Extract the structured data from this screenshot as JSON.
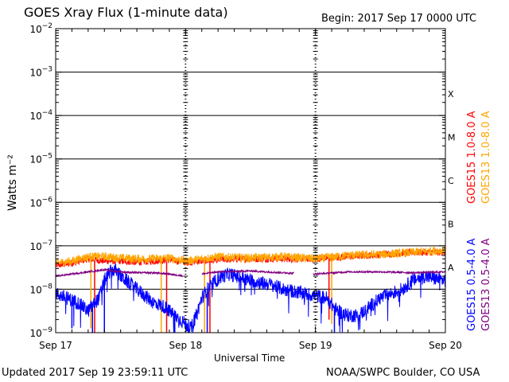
{
  "header": {
    "title": "GOES Xray Flux (1-minute data)",
    "begin": "Begin:  2017 Sep 17 0000 UTC"
  },
  "footer": {
    "updated": "Updated 2017 Sep 19 23:59:11 UTC",
    "credit": "NOAA/SWPC Boulder, CO USA"
  },
  "colors": {
    "goes15_long": "#ff0000",
    "goes13_long": "#ffa500",
    "goes15_short": "#0000ff",
    "goes13_short": "#800080",
    "frame": "#000000"
  },
  "chart_data": {
    "type": "line",
    "title": "GOES Xray Flux (1-minute data)",
    "xlabel": "Universal Time",
    "ylabel": "Watts m⁻²",
    "yscale": "log",
    "ylim": [
      1e-09,
      0.01
    ],
    "xlim": [
      0,
      72
    ],
    "x_unit": "hours since 2017 Sep 17 0000 UTC",
    "x_ticks": [
      {
        "x": 0,
        "label": "Sep 17"
      },
      {
        "x": 24,
        "label": "Sep 18"
      },
      {
        "x": 48,
        "label": "Sep 19"
      },
      {
        "x": 72,
        "label": "Sep 20"
      }
    ],
    "y_ticks": [
      {
        "exp": -9,
        "label": "10",
        "sup": "−9"
      },
      {
        "exp": -8,
        "label": "10",
        "sup": "−8"
      },
      {
        "exp": -7,
        "label": "10",
        "sup": "−7"
      },
      {
        "exp": -6,
        "label": "10",
        "sup": "−6"
      },
      {
        "exp": -5,
        "label": "10",
        "sup": "−5"
      },
      {
        "exp": -4,
        "label": "10",
        "sup": "−4"
      },
      {
        "exp": -3,
        "label": "10",
        "sup": "−3"
      },
      {
        "exp": -2,
        "label": "10",
        "sup": "−2"
      }
    ],
    "flare_classes": [
      {
        "label": "A",
        "exp": -8
      },
      {
        "label": "B",
        "exp": -7
      },
      {
        "label": "C",
        "exp": -6
      },
      {
        "label": "M",
        "exp": -5
      },
      {
        "label": "X",
        "exp": -4
      }
    ],
    "grid": "horizontal lines at decades ≥10⁻⁸, dotted day separators",
    "legend_placement": "right, rotated",
    "series": [
      {
        "name": "GOES15 1.0-8.0 A",
        "color": "#ff0000",
        "log_flux": [
          [
            0,
            -7.45
          ],
          [
            3,
            -7.4
          ],
          [
            6,
            -7.3
          ],
          [
            9,
            -7.35
          ],
          [
            12,
            -7.35
          ],
          [
            15,
            -7.38
          ],
          [
            18,
            -7.35
          ],
          [
            21,
            -7.32
          ],
          [
            24,
            -7.38
          ],
          [
            27,
            -7.35
          ],
          [
            30,
            -7.32
          ],
          [
            36,
            -7.3
          ],
          [
            42,
            -7.3
          ],
          [
            48,
            -7.3
          ],
          [
            54,
            -7.25
          ],
          [
            60,
            -7.2
          ],
          [
            66,
            -7.15
          ],
          [
            72,
            -7.15
          ]
        ],
        "dropouts": [
          [
            7.2,
            -9.0
          ],
          [
            20.5,
            -9.0
          ],
          [
            28.5,
            -9.0
          ],
          [
            50.5,
            -8.7
          ]
        ]
      },
      {
        "name": "GOES13 1.0-8.0 A",
        "color": "#ffa500",
        "log_flux": [
          [
            0,
            -7.4
          ],
          [
            3,
            -7.35
          ],
          [
            6,
            -7.25
          ],
          [
            9,
            -7.25
          ],
          [
            12,
            -7.28
          ],
          [
            15,
            -7.3
          ],
          [
            18,
            -7.3
          ],
          [
            21,
            -7.28
          ],
          [
            24,
            -7.35
          ],
          [
            27,
            -7.3
          ],
          [
            30,
            -7.25
          ],
          [
            36,
            -7.28
          ],
          [
            42,
            -7.25
          ],
          [
            48,
            -7.3
          ],
          [
            54,
            -7.22
          ],
          [
            60,
            -7.2
          ],
          [
            66,
            -7.15
          ],
          [
            72,
            -7.1
          ]
        ],
        "dropouts": [
          [
            6.5,
            -8.9
          ],
          [
            19.5,
            -9.0
          ],
          [
            27.5,
            -9.0
          ],
          [
            51.0,
            -8.8
          ]
        ]
      },
      {
        "name": "GOES15 0.5-4.0 A",
        "color": "#0000ff",
        "log_flux": [
          [
            0,
            -8.1
          ],
          [
            2,
            -8.2
          ],
          [
            4,
            -8.3
          ],
          [
            6,
            -8.5
          ],
          [
            8,
            -8.2
          ],
          [
            9,
            -7.8
          ],
          [
            10,
            -7.6
          ],
          [
            11,
            -7.55
          ],
          [
            12,
            -7.7
          ],
          [
            14,
            -7.9
          ],
          [
            16,
            -8.1
          ],
          [
            18,
            -8.3
          ],
          [
            20,
            -8.4
          ],
          [
            22,
            -8.6
          ],
          [
            24,
            -8.8
          ],
          [
            25,
            -8.9
          ],
          [
            26,
            -8.6
          ],
          [
            27,
            -8.2
          ],
          [
            28,
            -8.0
          ],
          [
            30,
            -7.75
          ],
          [
            32,
            -7.65
          ],
          [
            36,
            -7.8
          ],
          [
            40,
            -7.9
          ],
          [
            42,
            -8.0
          ],
          [
            44,
            -8.05
          ],
          [
            46,
            -8.1
          ],
          [
            48,
            -8.15
          ],
          [
            50,
            -8.2
          ],
          [
            52,
            -8.5
          ],
          [
            54,
            -8.6
          ],
          [
            56,
            -8.6
          ],
          [
            58,
            -8.4
          ],
          [
            60,
            -8.2
          ],
          [
            62,
            -8.1
          ],
          [
            64,
            -8.0
          ],
          [
            66,
            -7.8
          ],
          [
            68,
            -7.7
          ],
          [
            70,
            -7.75
          ],
          [
            72,
            -7.8
          ]
        ],
        "dropouts": [
          [
            3.0,
            -8.9
          ],
          [
            6.8,
            -9.0
          ],
          [
            9.0,
            -9.0
          ],
          [
            22.0,
            -9.0
          ],
          [
            28.0,
            -9.0
          ],
          [
            51.5,
            -9.0
          ]
        ]
      },
      {
        "name": "GOES13 0.5-4.0 A",
        "color": "#800080",
        "log_flux": [
          [
            0,
            -7.7
          ],
          [
            3,
            -7.65
          ],
          [
            6,
            -7.6
          ],
          [
            9,
            -7.55
          ],
          [
            12,
            -7.6
          ],
          [
            15,
            -7.62
          ],
          [
            18,
            -7.62
          ],
          [
            21,
            -7.65
          ],
          [
            24,
            -7.7
          ],
          [
            27,
            -7.65
          ],
          [
            30,
            -7.6
          ],
          [
            36,
            -7.58
          ],
          [
            42,
            -7.62
          ],
          [
            48,
            -7.65
          ],
          [
            54,
            -7.6
          ],
          [
            60,
            -7.6
          ],
          [
            66,
            -7.62
          ],
          [
            72,
            -7.6
          ]
        ],
        "gaps": [
          [
            23.5,
            27.0
          ],
          [
            44.0,
            47.5
          ]
        ]
      }
    ]
  }
}
